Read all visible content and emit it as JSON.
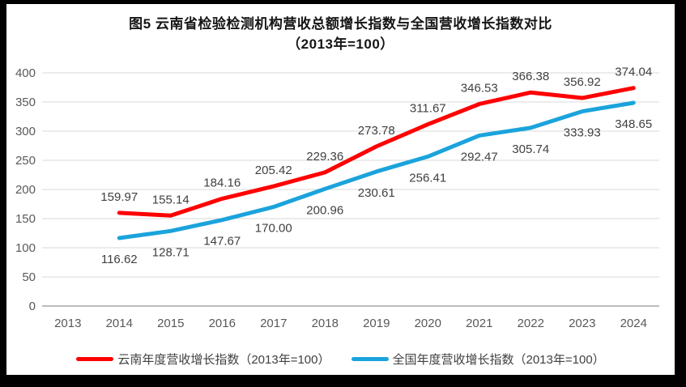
{
  "colors": {
    "yunnan_line": "#FF0000",
    "national_line": "#1BA3DC",
    "gridline": "#D9D9D9",
    "axis_line": "#A6A6A6",
    "tick_text": "#595959",
    "data_label_text": "#404040",
    "frame_border": "#000000",
    "background": "#FFFFFF"
  },
  "chart_data": {
    "type": "line",
    "title_line1": "图5  云南省检验检测机构营收总额增长指数与全国营收增长指数对比",
    "title_line2": "（2013年=100）",
    "categories": [
      "2013",
      "2014",
      "2015",
      "2016",
      "2017",
      "2018",
      "2019",
      "2020",
      "2021",
      "2022",
      "2023",
      "2024"
    ],
    "series": [
      {
        "name": "云南年度营收增长指数（2013年=100）",
        "color": "#FF0000",
        "label_position": "above",
        "values": [
          null,
          159.97,
          155.14,
          184.16,
          205.42,
          229.36,
          273.78,
          311.67,
          346.53,
          366.38,
          356.92,
          374.04
        ]
      },
      {
        "name": "全国年度营收增长指数（2013年=100）",
        "color": "#1BA3DC",
        "label_position": "below",
        "values": [
          null,
          116.62,
          128.71,
          147.67,
          170.0,
          200.96,
          230.61,
          256.41,
          292.47,
          305.74,
          333.93,
          348.65
        ]
      }
    ],
    "ylim": [
      0,
      400
    ],
    "ytick_step": 50,
    "yticks": [
      0,
      50,
      100,
      150,
      200,
      250,
      300,
      350,
      400
    ],
    "grid": true,
    "legend_position": "bottom",
    "data_label_decimals": 2
  }
}
